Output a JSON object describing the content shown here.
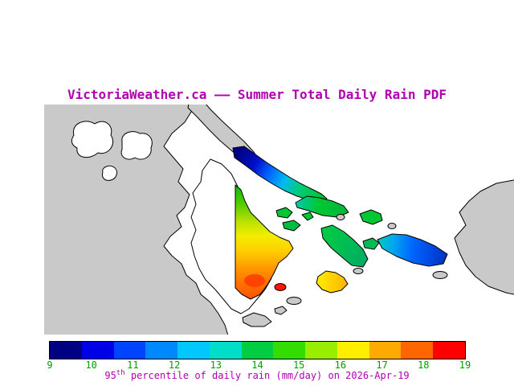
{
  "title": "VictoriaWeather.ca —— Summer Total Daily Rain PDF",
  "colors": {
    "title_text": "#b000b0",
    "tick_labels": "#00a000",
    "caption_text": "#b000b0",
    "land": "#c9c9c9",
    "water": "#ffffff",
    "coastline": "#000000"
  },
  "colorbar": {
    "ticks": [
      "9",
      "10",
      "11",
      "12",
      "13",
      "14",
      "15",
      "16",
      "17",
      "18",
      "19"
    ],
    "colors": [
      "#000085",
      "#0000e8",
      "#0044ff",
      "#0088ff",
      "#00c8ff",
      "#00ddc8",
      "#00cc44",
      "#33dd00",
      "#99ee00",
      "#ffee00",
      "#ffaa00",
      "#ff6600",
      "#ff0000"
    ],
    "unit_caption": {
      "prefix": "95",
      "sup": "th",
      "rest": " percentile of daily rain (mm/day) on 2026-Apr-19"
    }
  },
  "chart_data": {
    "type": "heatmap",
    "title": "VictoriaWeather.ca —— Summer Total Daily Rain PDF",
    "legend_label": "95th percentile of daily rain (mm/day) on 2026-Apr-19",
    "colorbar_ticks": [
      9,
      10,
      11,
      12,
      13,
      14,
      15,
      16,
      17,
      18,
      19
    ],
    "colorbar_range": [
      9,
      19
    ],
    "date_shown": "2026-Apr-19"
  }
}
